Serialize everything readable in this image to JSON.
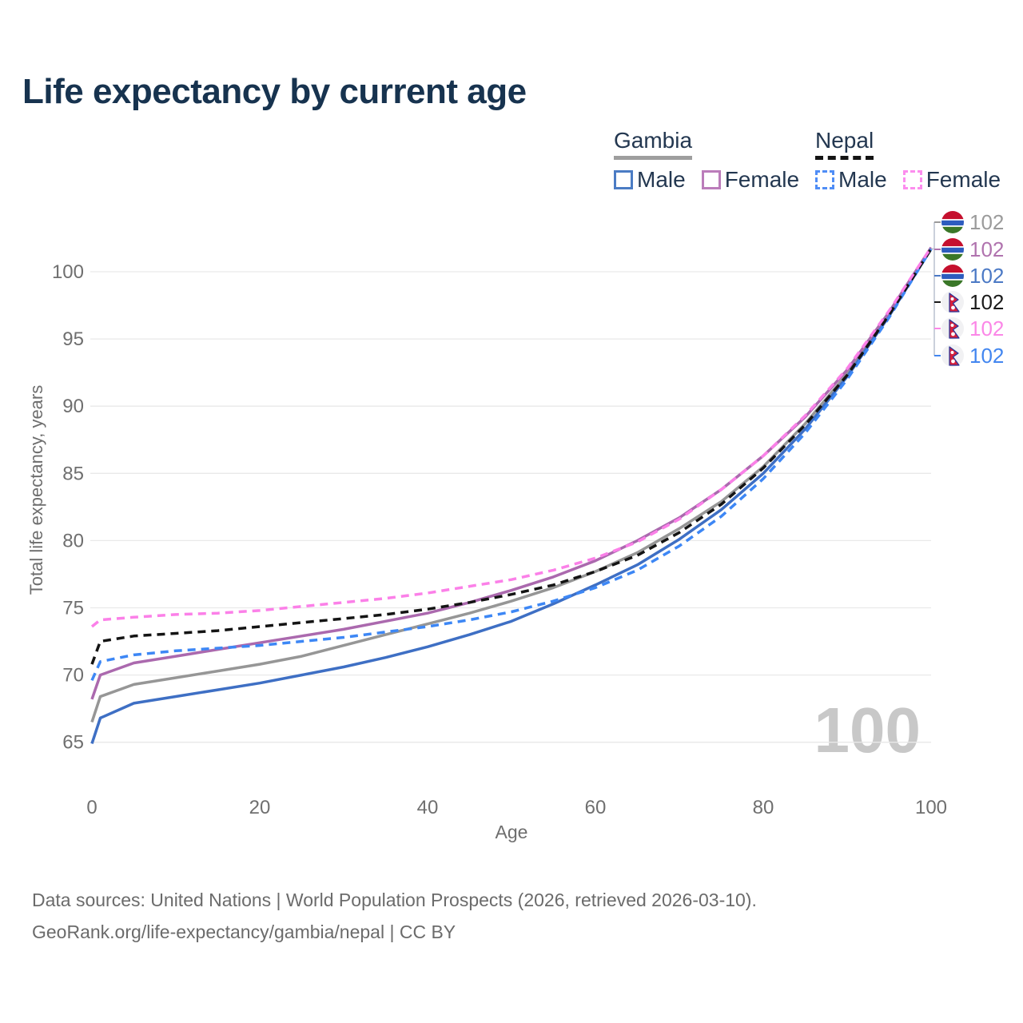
{
  "header": {
    "title": "Life expectancy by current age"
  },
  "legend": {
    "groups": [
      {
        "country": "Gambia",
        "line_style": "solid",
        "underline_color": "#9e9e9e",
        "items": [
          {
            "label": "Male",
            "color": "#4b7cc4",
            "style": "solid"
          },
          {
            "label": "Female",
            "color": "#bb7cba",
            "style": "solid"
          }
        ]
      },
      {
        "country": "Nepal",
        "line_style": "dashed",
        "underline_color": "#141414",
        "items": [
          {
            "label": "Male",
            "color": "#4f8df6",
            "style": "dashed"
          },
          {
            "label": "Female",
            "color": "#fc8dee",
            "style": "dashed"
          }
        ]
      }
    ]
  },
  "chart_data": {
    "type": "line",
    "title": "Life expectancy by current age",
    "xlabel": "Age",
    "ylabel": "Total life expectancy, years",
    "xlim": [
      0,
      100
    ],
    "ylim": [
      64,
      103
    ],
    "x_ticks": [
      0,
      20,
      40,
      60,
      80,
      100
    ],
    "y_ticks": [
      65,
      70,
      75,
      80,
      85,
      90,
      95,
      100
    ],
    "grid": "horizontal-only",
    "legend_position": "top-right",
    "age_watermark": "100",
    "x": [
      0,
      1,
      5,
      10,
      15,
      20,
      25,
      30,
      35,
      40,
      45,
      50,
      55,
      60,
      65,
      70,
      75,
      80,
      85,
      90,
      95,
      100
    ],
    "series": [
      {
        "name": "Gambia — Both sexes",
        "color": "#969696",
        "dash": "solid",
        "values": [
          66.5,
          68.4,
          69.3,
          69.8,
          70.3,
          70.8,
          71.4,
          72.2,
          73.0,
          73.8,
          74.6,
          75.5,
          76.5,
          77.7,
          79.1,
          80.9,
          82.9,
          85.5,
          88.7,
          92.4,
          96.8,
          101.7
        ]
      },
      {
        "name": "Gambia — Male",
        "color": "#3e6fc4",
        "dash": "solid",
        "values": [
          64.9,
          66.8,
          67.9,
          68.4,
          68.9,
          69.4,
          70.0,
          70.6,
          71.3,
          72.1,
          73.0,
          74.0,
          75.3,
          76.7,
          78.2,
          80.1,
          82.3,
          85.0,
          88.3,
          92.2,
          96.7,
          101.7
        ]
      },
      {
        "name": "Gambia — Female",
        "color": "#ab69ae",
        "dash": "solid",
        "values": [
          68.2,
          70.0,
          70.9,
          71.4,
          71.9,
          72.4,
          72.9,
          73.4,
          74.0,
          74.6,
          75.4,
          76.3,
          77.3,
          78.5,
          80.0,
          81.7,
          83.8,
          86.3,
          89.2,
          92.7,
          97.0,
          101.8
        ]
      },
      {
        "name": "Nepal — Male",
        "color": "#3d87f5",
        "dash": "dashed",
        "values": [
          69.6,
          71.0,
          71.5,
          71.8,
          72.0,
          72.2,
          72.5,
          72.8,
          73.2,
          73.6,
          74.1,
          74.7,
          75.5,
          76.5,
          77.8,
          79.6,
          81.8,
          84.6,
          88.0,
          92.0,
          96.6,
          101.7
        ]
      },
      {
        "name": "Nepal — Both sexes",
        "color": "#141414",
        "dash": "dashed",
        "values": [
          70.8,
          72.5,
          72.9,
          73.1,
          73.3,
          73.6,
          73.9,
          74.2,
          74.5,
          74.9,
          75.4,
          76.0,
          76.7,
          77.7,
          78.9,
          80.6,
          82.7,
          85.4,
          88.6,
          92.3,
          96.8,
          101.7
        ]
      },
      {
        "name": "Nepal — Female",
        "color": "#fb80e8",
        "dash": "dashed",
        "values": [
          73.6,
          74.1,
          74.3,
          74.5,
          74.6,
          74.8,
          75.1,
          75.4,
          75.7,
          76.1,
          76.6,
          77.1,
          77.8,
          78.7,
          79.9,
          81.6,
          83.8,
          86.3,
          89.3,
          92.8,
          97.1,
          101.8
        ]
      }
    ],
    "end_labels": [
      {
        "flag": "gambia",
        "value": "102",
        "color": "#9b9b9b"
      },
      {
        "flag": "gambia",
        "value": "102",
        "color": "#b073ae"
      },
      {
        "flag": "gambia",
        "value": "102",
        "color": "#4b79c5"
      },
      {
        "flag": "nepal",
        "value": "102",
        "color": "#1a1a1a"
      },
      {
        "flag": "nepal",
        "value": "102",
        "color": "#fb87e7"
      },
      {
        "flag": "nepal",
        "value": "102",
        "color": "#4286f0"
      }
    ]
  },
  "footer": {
    "line1": "Data sources: United Nations | World Population Prospects (2026, retrieved 2026-03-10).",
    "line2": "GeoRank.org/life-expectancy/gambia/nepal | CC BY"
  }
}
